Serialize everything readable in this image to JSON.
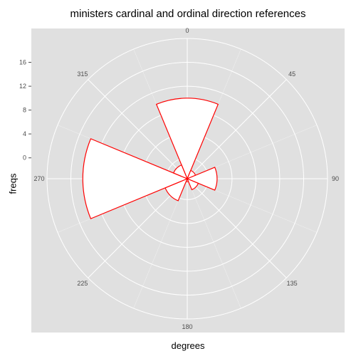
{
  "chart_data": {
    "type": "polar-bar",
    "title": "ministers cardinal and ordinal direction references",
    "xlabel": "degrees",
    "ylabel": "freqs",
    "theta_ticks": [
      "0",
      "45",
      "90",
      "135",
      "180",
      "225",
      "270",
      "315"
    ],
    "theta_values": [
      0,
      45,
      90,
      135,
      180,
      225,
      270,
      315
    ],
    "r_ticks": [
      "0",
      "4",
      "8",
      "12",
      "16"
    ],
    "r_values": [
      0,
      4,
      8,
      12,
      16
    ],
    "r_range": [
      -3.5,
      20
    ],
    "bar_width_degrees": 45,
    "bars": [
      {
        "angle": 0,
        "value": 10
      },
      {
        "angle": 45,
        "value": -2
      },
      {
        "angle": 90,
        "value": 1.5
      },
      {
        "angle": 135,
        "value": -1.5
      },
      {
        "angle": 180,
        "value": -3
      },
      {
        "angle": 225,
        "value": 0.5
      },
      {
        "angle": 270,
        "value": 14
      },
      {
        "angle": 315,
        "value": -1
      }
    ],
    "bar_fill": "#ffffff",
    "bar_stroke": "#ff0000",
    "panel_background": "#e0e0e0",
    "grid_color": "#ffffff",
    "grid": true
  }
}
